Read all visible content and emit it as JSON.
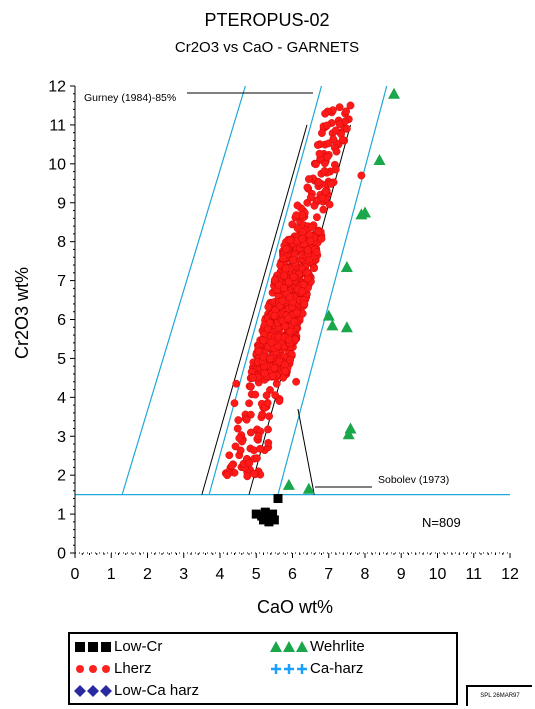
{
  "chart_data": {
    "type": "scatter",
    "title": "PTEROPUS-02",
    "subtitle": "Cr2O3 vs CaO - GARNETS",
    "xlabel": "CaO wt%",
    "ylabel": "Cr2O3  wt%",
    "xlim": [
      0,
      12
    ],
    "ylim": [
      0,
      12
    ],
    "xticks": [
      "0",
      "1",
      "2",
      "3",
      "4",
      "5",
      "6",
      "7",
      "8",
      "9",
      "10",
      "11",
      "12"
    ],
    "yticks": [
      "0",
      "1",
      "2",
      "3",
      "4",
      "5",
      "6",
      "7",
      "8",
      "9",
      "10",
      "11",
      "12"
    ],
    "count_label": "N=809",
    "annotations": {
      "gurney": "Gurney (1984)-85%",
      "sobolev": "Sobolev (1973)"
    },
    "reference_lines": {
      "cyan": [
        {
          "x": [
            1.3,
            4.7
          ],
          "y": [
            1.5,
            12
          ]
        },
        {
          "x": [
            3.7,
            6.8
          ],
          "y": [
            1.5,
            12
          ]
        },
        {
          "x": [
            5.6,
            8.6
          ],
          "y": [
            1.5,
            12
          ]
        },
        {
          "x": [
            0,
            12
          ],
          "y": [
            1.5,
            1.5
          ]
        }
      ],
      "black": [
        {
          "x": [
            3.5,
            6.4
          ],
          "y": [
            1.5,
            11
          ]
        },
        {
          "x": [
            4.8,
            7.6
          ],
          "y": [
            1.5,
            11
          ]
        },
        {
          "x": [
            6.15,
            6.6
          ],
          "y": [
            3.7,
            1.5
          ]
        }
      ]
    },
    "series": [
      {
        "name": "Low-Cr",
        "color": "#000000",
        "marker": "square",
        "points": [
          [
            5.0,
            1.0
          ],
          [
            5.2,
            0.85
          ],
          [
            5.35,
            0.8
          ],
          [
            5.25,
            1.05
          ],
          [
            5.45,
            1.0
          ],
          [
            5.5,
            0.85
          ],
          [
            5.6,
            1.4
          ],
          [
            5.15,
            0.95
          ]
        ]
      },
      {
        "name": "Lherz",
        "color": "#ff0000",
        "marker": "circle",
        "region": {
          "x_at_y2": [
            4.0,
            5.25
          ],
          "x_at_y11": [
            6.55,
            7.7
          ],
          "y_range": [
            1.9,
            11.5
          ]
        },
        "extra_points": [
          [
            7.6,
            11.5
          ],
          [
            4.45,
            4.35
          ],
          [
            4.4,
            3.85
          ],
          [
            4.2,
            2.0
          ],
          [
            6.1,
            4.4
          ],
          [
            7.5,
            10.9
          ],
          [
            7.9,
            9.7
          ]
        ]
      },
      {
        "name": "Wehrlite",
        "color": "#1aa64a",
        "marker": "triangle",
        "points": [
          [
            8.8,
            11.8
          ],
          [
            8.4,
            10.1
          ],
          [
            7.9,
            8.7
          ],
          [
            8.0,
            8.75
          ],
          [
            7.5,
            7.35
          ],
          [
            7.0,
            6.1
          ],
          [
            7.1,
            5.85
          ],
          [
            7.5,
            5.8
          ],
          [
            7.6,
            3.2
          ],
          [
            7.55,
            3.05
          ],
          [
            5.9,
            1.75
          ],
          [
            6.45,
            1.65
          ]
        ]
      },
      {
        "name": "Ca-harz",
        "color": "#1aa0ff",
        "marker": "plus",
        "points": []
      },
      {
        "name": "Low-Ca harz",
        "color": "#2a2aa0",
        "marker": "diamond",
        "points": []
      }
    ],
    "n_points": 809
  },
  "legend": {
    "low_cr": "Low-Cr",
    "lherz": "Lherz",
    "low_ca_harz": "Low-Ca harz",
    "wehrlite": "Wehrlite",
    "ca_harz": "Ca-harz"
  },
  "stamp": "SPL 26MAR97"
}
